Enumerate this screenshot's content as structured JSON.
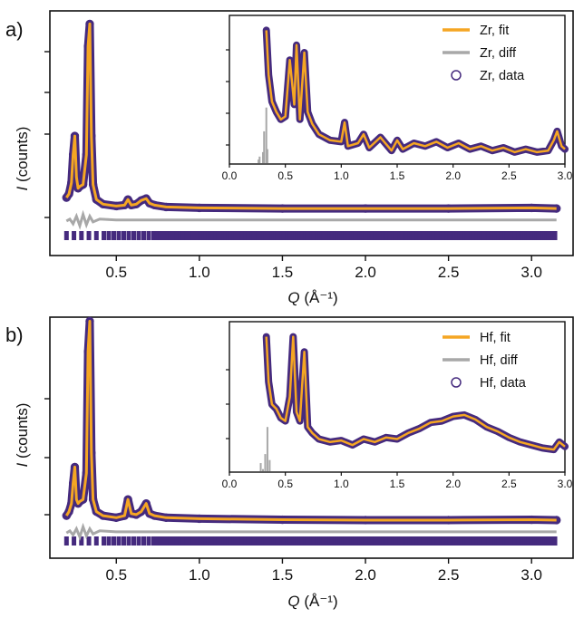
{
  "colors": {
    "fit": "#f5a623",
    "diff": "#a8a8a8",
    "data": "#452a7e",
    "tick_marks": "#452a7e",
    "axes": "#111111"
  },
  "chart_data": [
    {
      "type": "line",
      "panel_label": "a)",
      "xlabel": "Q (Å⁻¹)",
      "xlabel_main": "Q",
      "xlabel_unit": " (Å⁻¹)",
      "ylabel": "I (counts)",
      "ylabel_main": "I",
      "ylabel_unit": " (counts)",
      "xlim": [
        0.1,
        3.25
      ],
      "ylim": [
        -0.24,
        1.07
      ],
      "x_ticks": [
        "0.5",
        "1.0",
        "1.5",
        "2.0",
        "2.5",
        "3.0"
      ],
      "x_tick_values": [
        0.5,
        1.0,
        1.5,
        2.0,
        2.5,
        3.0
      ],
      "y_tick_labels_shown": false,
      "legend": [
        {
          "name": "Zr, fit",
          "kind": "line"
        },
        {
          "name": "Zr, diff",
          "kind": "line"
        },
        {
          "name": "Zr, data",
          "kind": "marker"
        }
      ],
      "legend_position": "inset top-right",
      "series": [
        {
          "name": "Zr, fit",
          "x": [
            0.2,
            0.215,
            0.23,
            0.24,
            0.25,
            0.26,
            0.27,
            0.28,
            0.3,
            0.32,
            0.33,
            0.34,
            0.35,
            0.36,
            0.38,
            0.42,
            0.5,
            0.55,
            0.57,
            0.59,
            0.62,
            0.65,
            0.68,
            0.7,
            0.73,
            0.8,
            1.0,
            1.5,
            2.0,
            2.5,
            3.0,
            3.15
          ],
          "y": [
            0.07,
            0.09,
            0.15,
            0.3,
            0.4,
            0.18,
            0.12,
            0.13,
            0.14,
            0.3,
            0.88,
            1.0,
            0.4,
            0.14,
            0.06,
            0.035,
            0.025,
            0.03,
            0.06,
            0.03,
            0.035,
            0.055,
            0.065,
            0.04,
            0.03,
            0.02,
            0.015,
            0.012,
            0.012,
            0.012,
            0.015,
            0.012
          ]
        },
        {
          "name": "Zr, diff",
          "x": [
            0.2,
            0.22,
            0.24,
            0.26,
            0.28,
            0.3,
            0.32,
            0.34,
            0.36,
            0.4,
            0.5,
            1.0,
            2.0,
            3.15
          ],
          "y": [
            -0.005,
            0.005,
            -0.02,
            0.02,
            -0.03,
            0.03,
            -0.025,
            0.02,
            -0.01,
            0.005,
            0.0,
            0.0,
            0.0,
            0.0
          ]
        },
        {
          "name": "Zr, data",
          "x": [
            0.2,
            0.215,
            0.23,
            0.24,
            0.25,
            0.26,
            0.27,
            0.28,
            0.3,
            0.32,
            0.33,
            0.34,
            0.35,
            0.36,
            0.38,
            0.42,
            0.5,
            0.55,
            0.57,
            0.59,
            0.62,
            0.65,
            0.68,
            0.7,
            0.73,
            0.8,
            1.0,
            1.5,
            2.0,
            2.5,
            3.0,
            3.15
          ],
          "y": [
            0.07,
            0.09,
            0.15,
            0.3,
            0.4,
            0.18,
            0.12,
            0.13,
            0.14,
            0.3,
            0.88,
            1.0,
            0.4,
            0.14,
            0.06,
            0.035,
            0.025,
            0.03,
            0.06,
            0.03,
            0.035,
            0.055,
            0.065,
            0.04,
            0.03,
            0.02,
            0.015,
            0.012,
            0.012,
            0.012,
            0.015,
            0.012
          ]
        }
      ],
      "inset": {
        "xlim": [
          0.0,
          3.0
        ],
        "x_ticks": [
          "0.0",
          "0.5",
          "1.0",
          "1.5",
          "2.0",
          "2.5",
          "3.0"
        ],
        "x_tick_values": [
          0.0,
          0.5,
          1.0,
          1.5,
          2.0,
          2.5,
          3.0
        ],
        "series_fit_x": [
          0.33,
          0.35,
          0.38,
          0.42,
          0.46,
          0.5,
          0.54,
          0.58,
          0.6,
          0.63,
          0.67,
          0.7,
          0.74,
          0.8,
          0.9,
          1.0,
          1.03,
          1.06,
          1.15,
          1.2,
          1.25,
          1.35,
          1.45,
          1.5,
          1.55,
          1.65,
          1.75,
          1.85,
          1.95,
          2.05,
          2.15,
          2.25,
          2.35,
          2.45,
          2.55,
          2.65,
          2.75,
          2.85,
          2.9,
          2.93,
          2.97,
          3.0
        ],
        "series_fit_y": [
          0.9,
          0.6,
          0.42,
          0.35,
          0.3,
          0.32,
          0.7,
          0.4,
          0.8,
          0.3,
          0.75,
          0.35,
          0.27,
          0.2,
          0.16,
          0.15,
          0.28,
          0.12,
          0.14,
          0.2,
          0.11,
          0.18,
          0.09,
          0.16,
          0.1,
          0.14,
          0.12,
          0.15,
          0.11,
          0.14,
          0.1,
          0.12,
          0.09,
          0.11,
          0.08,
          0.1,
          0.08,
          0.09,
          0.16,
          0.22,
          0.12,
          0.1
        ],
        "series_diff_x": [
          0.26,
          0.27,
          0.3,
          0.31,
          0.33,
          0.34
        ],
        "series_diff_y": [
          0.03,
          0.05,
          0.08,
          0.22,
          0.38,
          0.1
        ]
      }
    },
    {
      "type": "line",
      "panel_label": "b)",
      "xlabel": "Q (Å⁻¹)",
      "xlabel_main": "Q",
      "xlabel_unit": " (Å⁻¹)",
      "ylabel": "I (counts)",
      "ylabel_main": "I",
      "ylabel_unit": " (counts)",
      "xlim": [
        0.1,
        3.25
      ],
      "ylim": [
        -0.17,
        1.02
      ],
      "x_ticks": [
        "0.5",
        "1.0",
        "1.5",
        "2.0",
        "2.5",
        "3.0"
      ],
      "x_tick_values": [
        0.5,
        1.0,
        1.5,
        2.0,
        2.5,
        3.0
      ],
      "y_tick_labels_shown": false,
      "legend": [
        {
          "name": "Hf, fit",
          "kind": "line"
        },
        {
          "name": "Hf, diff",
          "kind": "line"
        },
        {
          "name": "Hf, data",
          "kind": "marker"
        }
      ],
      "legend_position": "inset top-right",
      "series": [
        {
          "name": "Hf, fit",
          "x": [
            0.2,
            0.215,
            0.23,
            0.24,
            0.25,
            0.26,
            0.27,
            0.28,
            0.3,
            0.32,
            0.33,
            0.34,
            0.35,
            0.36,
            0.38,
            0.42,
            0.5,
            0.55,
            0.57,
            0.59,
            0.62,
            0.65,
            0.68,
            0.7,
            0.73,
            0.8,
            1.0,
            1.5,
            2.0,
            2.5,
            3.0,
            3.15
          ],
          "y": [
            0.04,
            0.06,
            0.1,
            0.2,
            0.28,
            0.12,
            0.1,
            0.11,
            0.12,
            0.25,
            0.85,
            1.0,
            0.35,
            0.12,
            0.06,
            0.04,
            0.03,
            0.04,
            0.12,
            0.05,
            0.045,
            0.06,
            0.1,
            0.05,
            0.04,
            0.03,
            0.025,
            0.02,
            0.018,
            0.018,
            0.02,
            0.018
          ]
        },
        {
          "name": "Hf, diff",
          "x": [
            0.2,
            0.22,
            0.24,
            0.26,
            0.28,
            0.3,
            0.32,
            0.34,
            0.36,
            0.4,
            0.5,
            1.0,
            2.0,
            3.15
          ],
          "y": [
            -0.005,
            0.005,
            -0.015,
            0.015,
            -0.025,
            0.025,
            -0.02,
            0.015,
            -0.01,
            0.005,
            0.0,
            0.0,
            0.0,
            0.0
          ]
        },
        {
          "name": "Hf, data",
          "x": [
            0.2,
            0.215,
            0.23,
            0.24,
            0.25,
            0.26,
            0.27,
            0.28,
            0.3,
            0.32,
            0.33,
            0.34,
            0.35,
            0.36,
            0.38,
            0.42,
            0.5,
            0.55,
            0.57,
            0.59,
            0.62,
            0.65,
            0.68,
            0.7,
            0.73,
            0.8,
            1.0,
            1.5,
            2.0,
            2.5,
            3.0,
            3.15
          ],
          "y": [
            0.04,
            0.06,
            0.1,
            0.2,
            0.28,
            0.12,
            0.1,
            0.11,
            0.12,
            0.25,
            0.85,
            1.0,
            0.35,
            0.12,
            0.06,
            0.04,
            0.03,
            0.04,
            0.12,
            0.05,
            0.045,
            0.06,
            0.1,
            0.05,
            0.04,
            0.03,
            0.025,
            0.02,
            0.018,
            0.018,
            0.02,
            0.018
          ]
        }
      ],
      "inset": {
        "xlim": [
          0.0,
          3.0
        ],
        "x_ticks": [
          "0.0",
          "0.5",
          "1.0",
          "1.5",
          "2.0",
          "2.5",
          "3.0"
        ],
        "x_tick_values": [
          0.0,
          0.5,
          1.0,
          1.5,
          2.0,
          2.5,
          3.0
        ],
        "series_fit_x": [
          0.33,
          0.35,
          0.38,
          0.42,
          0.46,
          0.5,
          0.54,
          0.57,
          0.6,
          0.63,
          0.67,
          0.7,
          0.74,
          0.8,
          0.9,
          1.0,
          1.1,
          1.2,
          1.3,
          1.4,
          1.5,
          1.6,
          1.7,
          1.8,
          1.9,
          2.0,
          2.1,
          2.2,
          2.3,
          2.4,
          2.5,
          2.6,
          2.7,
          2.8,
          2.9,
          2.95,
          3.0
        ],
        "series_fit_y": [
          0.9,
          0.6,
          0.45,
          0.42,
          0.36,
          0.34,
          0.5,
          0.9,
          0.4,
          0.34,
          0.8,
          0.3,
          0.26,
          0.22,
          0.2,
          0.21,
          0.18,
          0.22,
          0.2,
          0.23,
          0.22,
          0.26,
          0.29,
          0.33,
          0.34,
          0.37,
          0.38,
          0.35,
          0.3,
          0.27,
          0.23,
          0.2,
          0.18,
          0.16,
          0.15,
          0.2,
          0.17
        ],
        "series_diff_x": [
          0.28,
          0.3,
          0.32,
          0.34,
          0.36
        ],
        "series_diff_y": [
          0.06,
          0.02,
          0.12,
          0.3,
          0.08
        ]
      }
    }
  ]
}
